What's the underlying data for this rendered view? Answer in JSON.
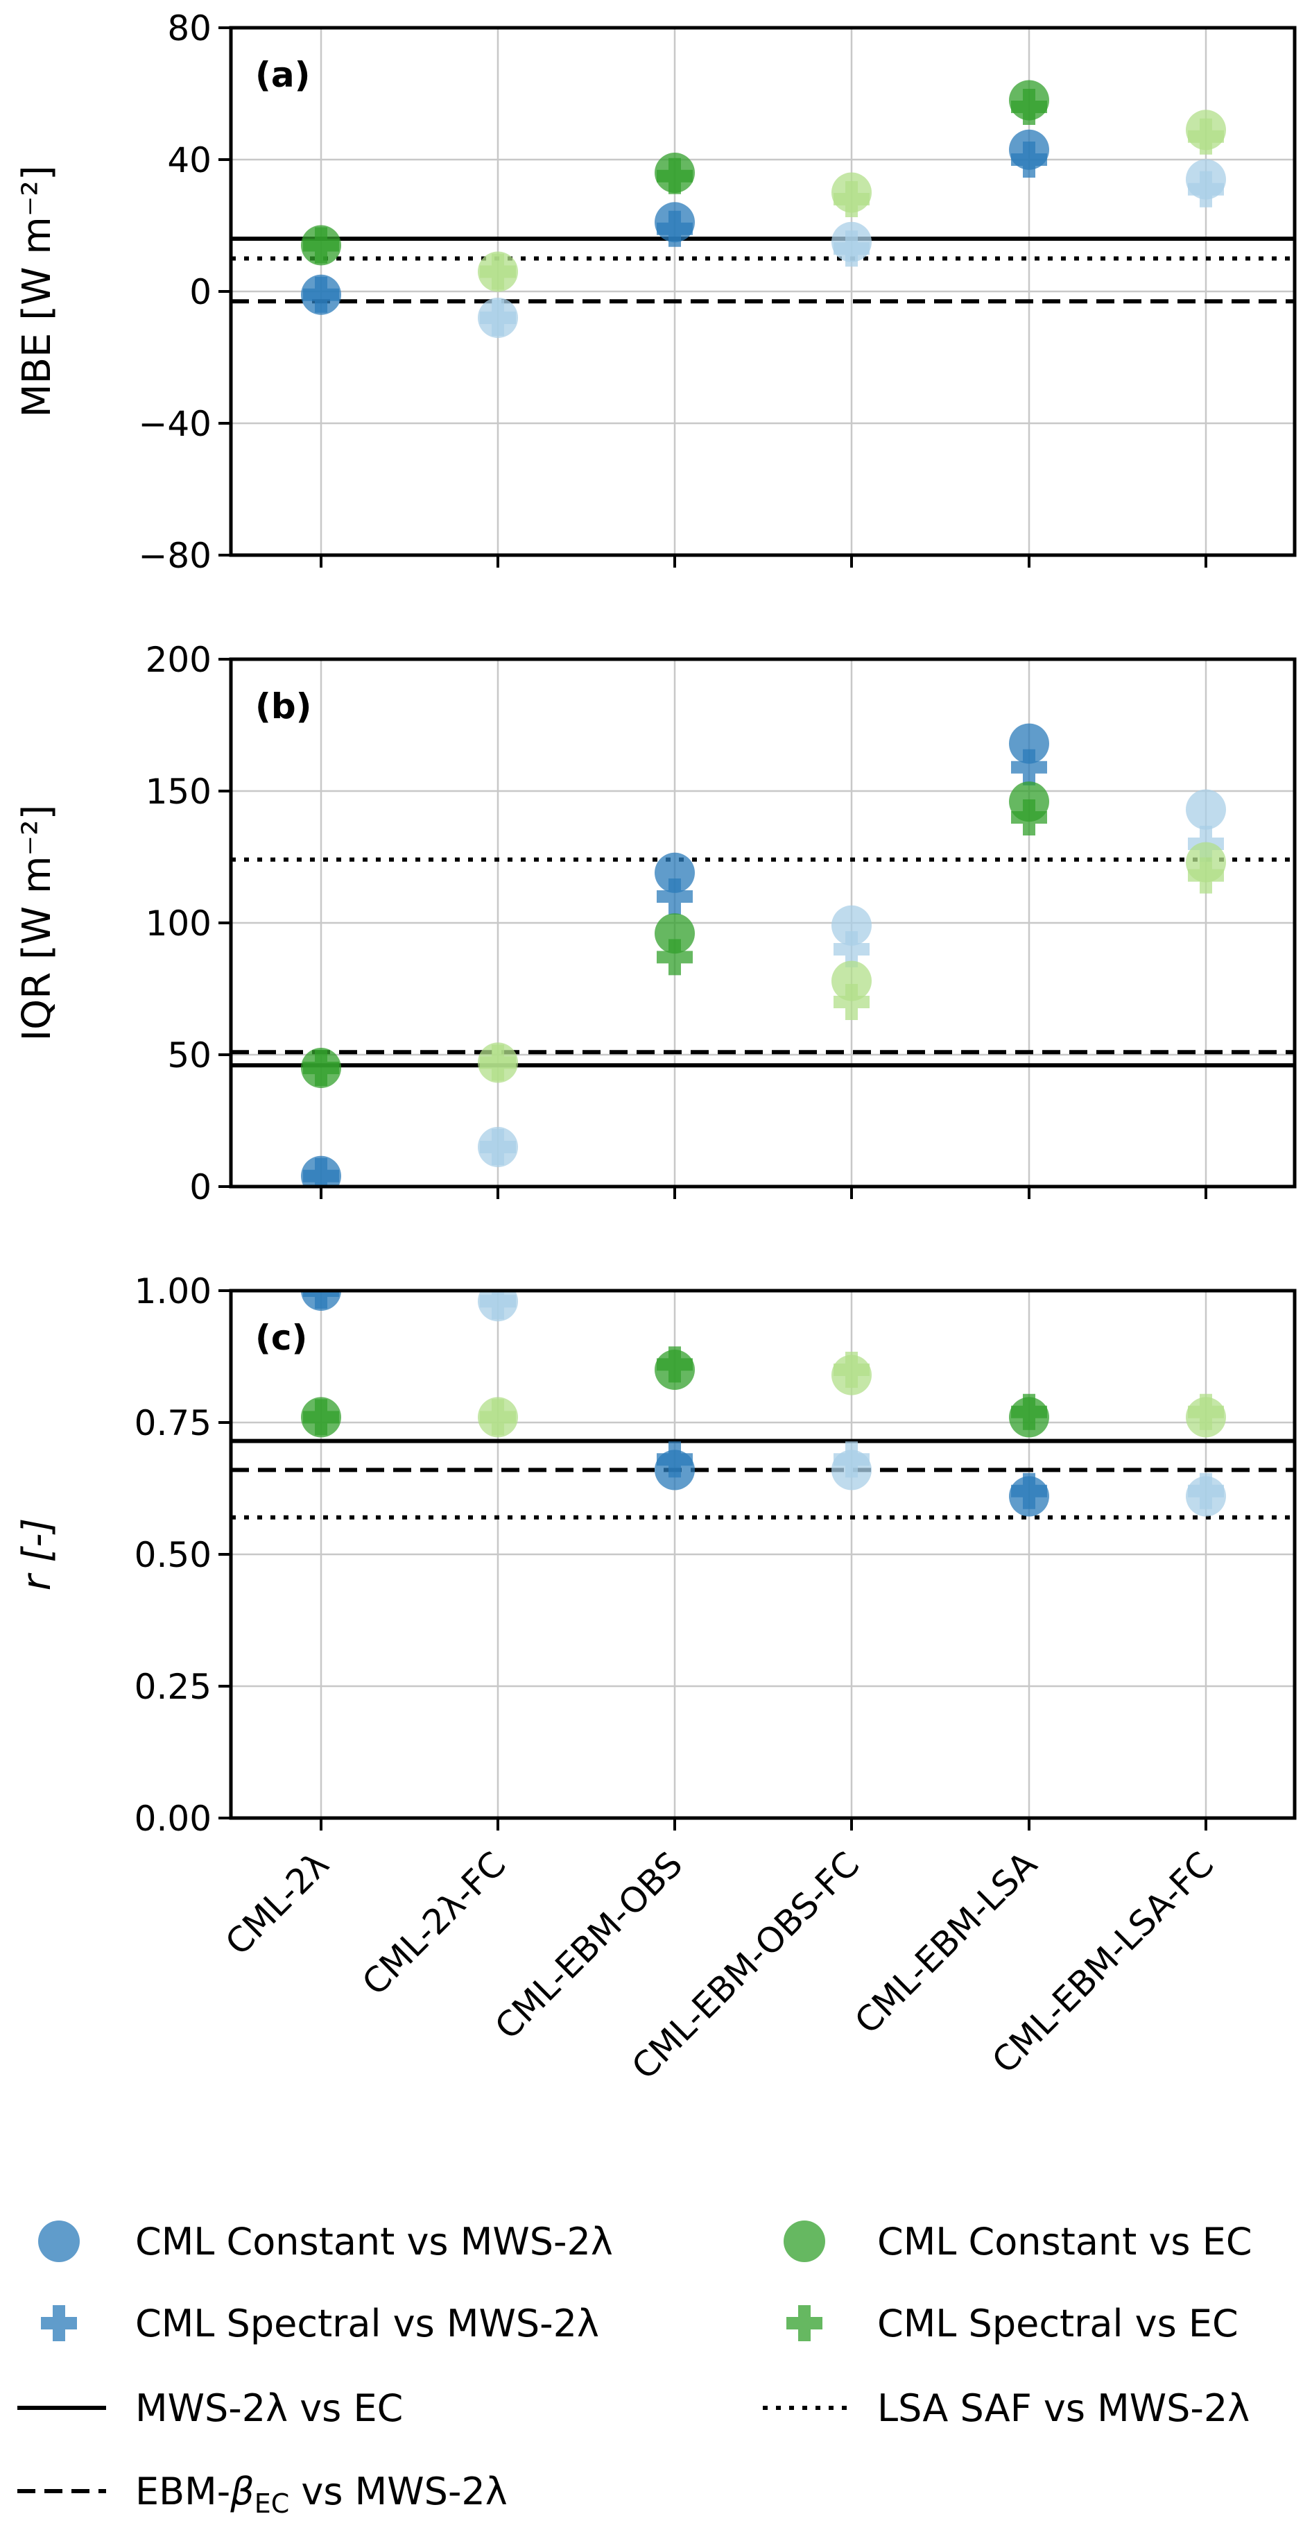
{
  "chart_data": {
    "type": "scatter",
    "categories": [
      "CML-2λ",
      "CML-2λ-FC",
      "CML-EBM-OBS",
      "CML-EBM-OBS-FC",
      "CML-EBM-LSA",
      "CML-EBM-LSA-FC"
    ],
    "colors": {
      "dark_blue": "#2b7bba",
      "light_blue": "#a9cfe7",
      "dark_green": "#33a02c",
      "light_green": "#b2df8a",
      "reference_line": "#000000",
      "grid": "#c8c8c8"
    },
    "point_opacity": 0.75,
    "panels": [
      {
        "label": "(a)",
        "ylabel": "MBE [W m⁻²]",
        "ylim": [
          -80,
          80
        ],
        "yticks": [
          -80,
          -40,
          0,
          40,
          80
        ],
        "ytick_labels": [
          "−80",
          "−40",
          "0",
          "40",
          "80"
        ],
        "series": [
          {
            "name": "CML Constant vs MWS-2λ",
            "marker": "circle",
            "values": [
              -1,
              -8,
              21,
              15,
              43,
              34
            ]
          },
          {
            "name": "CML Spectral vs MWS-2λ",
            "marker": "plus",
            "values": [
              -1,
              -8,
              19,
              13,
              40,
              31
            ]
          },
          {
            "name": "CML Constant vs EC",
            "marker": "circle",
            "values": [
              14,
              6,
              36,
              30,
              58,
              49
            ]
          },
          {
            "name": "CML Spectral vs EC",
            "marker": "plus",
            "values": [
              14,
              6,
              35,
              28,
              56,
              47
            ]
          }
        ],
        "lines": [
          {
            "name": "MWS-2λ vs EC",
            "style": "solid",
            "value": 16
          },
          {
            "name": "EBM-βEC vs MWS-2λ",
            "style": "dashed",
            "value": -3
          },
          {
            "name": "LSA SAF vs MWS-2λ",
            "style": "dotted",
            "value": 10
          }
        ]
      },
      {
        "label": "(b)",
        "ylabel": "IQR [W m⁻²]",
        "ylim": [
          0,
          200
        ],
        "yticks": [
          0,
          50,
          100,
          150,
          200
        ],
        "ytick_labels": [
          "0",
          "50",
          "100",
          "150",
          "200"
        ],
        "series": [
          {
            "name": "CML Constant vs MWS-2λ",
            "marker": "circle",
            "values": [
              4,
              15,
              119,
              99,
              168,
              143
            ]
          },
          {
            "name": "CML Spectral vs MWS-2λ",
            "marker": "plus",
            "values": [
              4,
              15,
              110,
              90,
              159,
              130
            ]
          },
          {
            "name": "CML Constant vs EC",
            "marker": "circle",
            "values": [
              45,
              47,
              96,
              78,
              146,
              123
            ]
          },
          {
            "name": "CML Spectral vs EC",
            "marker": "plus",
            "values": [
              45,
              47,
              87,
              70,
              140,
              118
            ]
          }
        ],
        "lines": [
          {
            "name": "MWS-2λ vs EC",
            "style": "solid",
            "value": 46
          },
          {
            "name": "EBM-βEC vs MWS-2λ",
            "style": "dashed",
            "value": 51
          },
          {
            "name": "LSA SAF vs MWS-2λ",
            "style": "dotted",
            "value": 124
          }
        ]
      },
      {
        "label": "(c)",
        "ylabel": "r [-]",
        "ylim": [
          0,
          1
        ],
        "yticks": [
          0,
          0.25,
          0.5,
          0.75,
          1
        ],
        "ytick_labels": [
          "0.00",
          "0.25",
          "0.50",
          "0.75",
          "1.00"
        ],
        "series": [
          {
            "name": "CML Constant vs MWS-2λ",
            "marker": "circle",
            "values": [
              1.0,
              0.98,
              0.66,
              0.66,
              0.61,
              0.61
            ]
          },
          {
            "name": "CML Spectral vs MWS-2λ",
            "marker": "plus",
            "values": [
              1.0,
              0.98,
              0.68,
              0.68,
              0.62,
              0.62
            ]
          },
          {
            "name": "CML Constant vs EC",
            "marker": "circle",
            "values": [
              0.76,
              0.76,
              0.85,
              0.84,
              0.76,
              0.76
            ]
          },
          {
            "name": "CML Spectral vs EC",
            "marker": "plus",
            "values": [
              0.76,
              0.76,
              0.86,
              0.85,
              0.77,
              0.77
            ]
          }
        ],
        "lines": [
          {
            "name": "MWS-2λ vs EC",
            "style": "solid",
            "value": 0.715
          },
          {
            "name": "EBM-βEC vs MWS-2λ",
            "style": "dashed",
            "value": 0.66
          },
          {
            "name": "LSA SAF vs MWS-2λ",
            "style": "dotted",
            "value": 0.57
          }
        ]
      }
    ],
    "legend": {
      "position": "bottom",
      "columns": 2,
      "entries": [
        {
          "label": "CML Constant vs MWS-2λ",
          "kind": "circle",
          "color": "dark_blue"
        },
        {
          "label": "CML Constant vs EC",
          "kind": "circle",
          "color": "dark_green"
        },
        {
          "label": "CML Spectral vs MWS-2λ",
          "kind": "plus",
          "color": "dark_blue"
        },
        {
          "label": "CML Spectral vs EC",
          "kind": "plus",
          "color": "dark_green"
        },
        {
          "label": "MWS-2λ vs EC",
          "kind": "solid"
        },
        {
          "label": "LSA SAF vs MWS-2λ",
          "kind": "dotted"
        },
        {
          "label_parts": [
            "EBM-",
            "β",
            "EC",
            " vs MWS-2λ"
          ],
          "kind": "dashed"
        }
      ]
    },
    "grid": true
  }
}
